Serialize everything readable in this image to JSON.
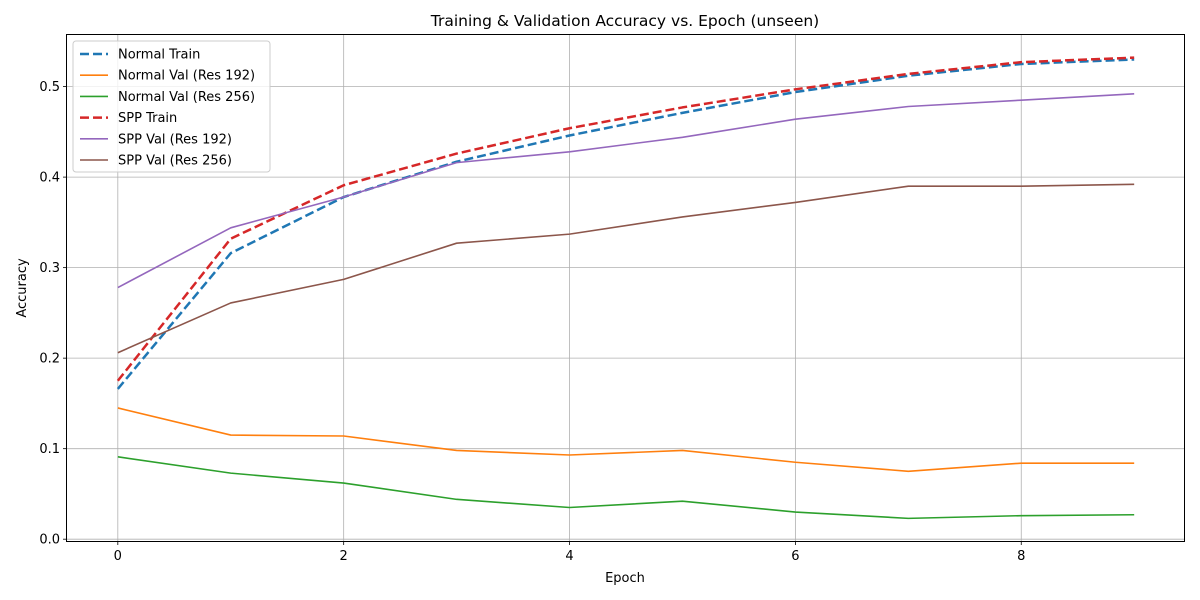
{
  "chart_data": {
    "type": "line",
    "title": "Training & Validation Accuracy vs. Epoch (unseen)",
    "xlabel": "Epoch",
    "ylabel": "Accuracy",
    "x": [
      0,
      1,
      2,
      3,
      4,
      5,
      6,
      7,
      8,
      9
    ],
    "xlim": [
      -0.45,
      9.45
    ],
    "ylim": [
      -0.002,
      0.557
    ],
    "xticks": [
      0,
      2,
      4,
      6,
      8
    ],
    "yticks": [
      0.0,
      0.1,
      0.2,
      0.3,
      0.4,
      0.5
    ],
    "ytick_labels": [
      "0.0",
      "0.1",
      "0.2",
      "0.3",
      "0.4",
      "0.5"
    ],
    "grid": true,
    "legend_position": "top-left",
    "series": [
      {
        "name": "Normal Train",
        "color": "#1f77b4",
        "dashed": true,
        "values": [
          0.166,
          0.316,
          0.378,
          0.417,
          0.446,
          0.471,
          0.494,
          0.512,
          0.525,
          0.53
        ]
      },
      {
        "name": "Normal Val (Res 192)",
        "color": "#ff7f0e",
        "dashed": false,
        "values": [
          0.145,
          0.115,
          0.114,
          0.098,
          0.093,
          0.098,
          0.085,
          0.075,
          0.084,
          0.084
        ]
      },
      {
        "name": "Normal Val (Res 256)",
        "color": "#2ca02c",
        "dashed": false,
        "values": [
          0.091,
          0.073,
          0.062,
          0.044,
          0.035,
          0.042,
          0.03,
          0.023,
          0.026,
          0.027
        ]
      },
      {
        "name": "SPP Train",
        "color": "#d62728",
        "dashed": true,
        "values": [
          0.175,
          0.332,
          0.391,
          0.426,
          0.454,
          0.477,
          0.497,
          0.514,
          0.527,
          0.532
        ]
      },
      {
        "name": "SPP Val (Res 192)",
        "color": "#9467bd",
        "dashed": false,
        "values": [
          0.278,
          0.344,
          0.378,
          0.416,
          0.428,
          0.444,
          0.464,
          0.478,
          0.485,
          0.492
        ]
      },
      {
        "name": "SPP Val (Res 256)",
        "color": "#8c564b",
        "dashed": false,
        "values": [
          0.206,
          0.261,
          0.287,
          0.327,
          0.337,
          0.356,
          0.372,
          0.39,
          0.39,
          0.392
        ]
      }
    ]
  }
}
